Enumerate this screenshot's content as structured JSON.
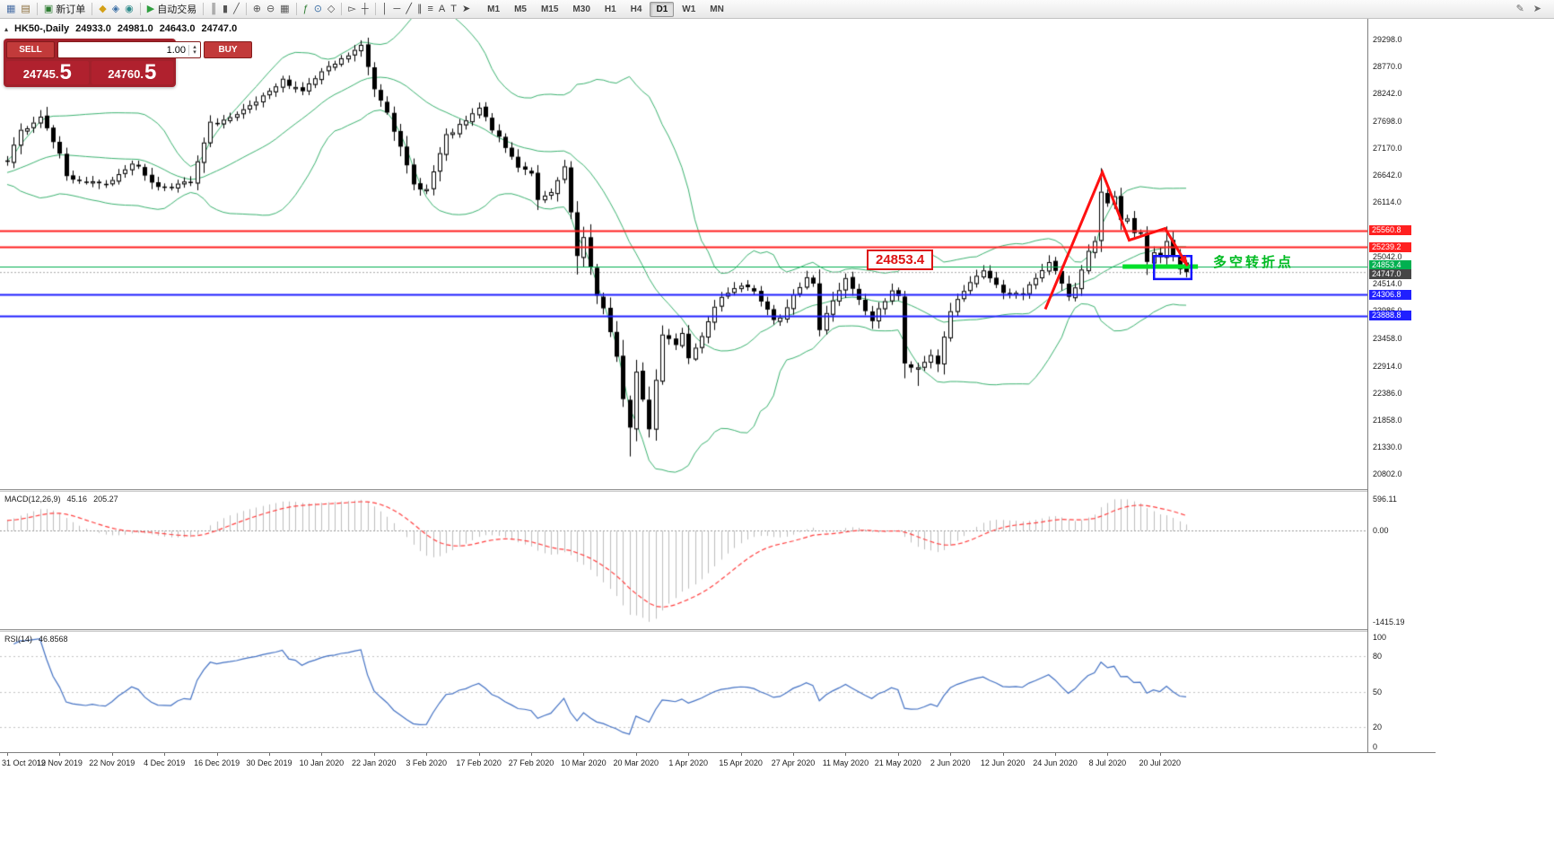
{
  "toolbar": {
    "groups": [
      {
        "items": [
          {
            "name": "new-chart-icon",
            "glyph": "▦",
            "color": "#4a6fa5"
          },
          {
            "name": "profiles-icon",
            "glyph": "▤",
            "color": "#8a6d3b"
          }
        ]
      },
      {
        "items": [
          {
            "name": "new-order-button",
            "glyph": "▣",
            "color": "#2e7d32",
            "label": "新订单"
          }
        ]
      },
      {
        "items": [
          {
            "name": "market-watch-icon",
            "glyph": "◆",
            "color": "#d4a017"
          },
          {
            "name": "data-window-icon",
            "glyph": "◈",
            "color": "#3a6ea5"
          },
          {
            "name": "navigator-icon",
            "glyph": "◉",
            "color": "#2e8b8b"
          }
        ]
      },
      {
        "items": [
          {
            "name": "autotrading-button",
            "glyph": "▶",
            "color": "#2e9e3e",
            "label": "自动交易"
          }
        ]
      },
      {
        "items": [
          {
            "name": "bar-chart-icon",
            "glyph": "║",
            "color": "#555555"
          },
          {
            "name": "candlestick-chart-icon",
            "glyph": "▮",
            "color": "#555555"
          },
          {
            "name": "line-chart-icon",
            "glyph": "╱",
            "color": "#555555"
          }
        ]
      },
      {
        "items": [
          {
            "name": "zoom-in-icon",
            "glyph": "⊕",
            "color": "#555555"
          },
          {
            "name": "zoom-out-icon",
            "glyph": "⊖",
            "color": "#555555"
          },
          {
            "name": "tile-windows-icon",
            "glyph": "▦",
            "color": "#555555"
          }
        ]
      },
      {
        "items": [
          {
            "name": "indicators-icon",
            "glyph": "ƒ",
            "color": "#2e7d32"
          },
          {
            "name": "cycles-icon",
            "glyph": "⊙",
            "color": "#3a6ea5"
          },
          {
            "name": "objects-icon",
            "glyph": "◇",
            "color": "#555555"
          }
        ]
      },
      {
        "items": [
          {
            "name": "cursor-icon",
            "glyph": "▻",
            "color": "#444444"
          },
          {
            "name": "crosshair-icon",
            "glyph": "┼",
            "color": "#444444"
          }
        ]
      },
      {
        "items": [
          {
            "name": "vertical-line-icon",
            "glyph": "│",
            "color": "#444444"
          },
          {
            "name": "horizontal-line-icon",
            "glyph": "─",
            "color": "#444444"
          },
          {
            "name": "trendline-icon",
            "glyph": "╱",
            "color": "#444444"
          },
          {
            "name": "channel-icon",
            "glyph": "∥",
            "color": "#444444"
          },
          {
            "name": "fibonacci-icon",
            "glyph": "≡",
            "color": "#444444"
          },
          {
            "name": "text-icon",
            "glyph": "A",
            "color": "#444444"
          },
          {
            "name": "label-icon",
            "glyph": "T",
            "color": "#444444"
          },
          {
            "name": "arrows-icon",
            "glyph": "➤",
            "color": "#444444"
          }
        ]
      }
    ],
    "timeframes": [
      "M1",
      "M5",
      "M15",
      "M30",
      "H1",
      "H4",
      "D1",
      "W1",
      "MN"
    ],
    "active_timeframe": "D1",
    "right_icons": [
      {
        "name": "pencil-icon",
        "glyph": "✎"
      },
      {
        "name": "pointer-icon",
        "glyph": "➤"
      }
    ]
  },
  "quote_bar": {
    "collapse_glyph": "▴",
    "symbol_period": "HK50-,Daily",
    "open": "24933.0",
    "high": "24981.0",
    "low": "24643.0",
    "close": "24747.0"
  },
  "one_click": {
    "sell_label": "SELL",
    "buy_label": "BUY",
    "volume": "1.00",
    "vol_up_glyph": "▴",
    "vol_down_glyph": "▾",
    "sell_price_main": "24745.",
    "sell_price_big": "5",
    "buy_price_main": "24760.",
    "buy_price_big": "5"
  },
  "annotations": {
    "level_label": "24853.4",
    "turning_point_label": "多空转折点"
  },
  "chart_data": {
    "type": "candlestick",
    "title": "HK50-,Daily",
    "n_candles": 181,
    "x_label_every": 8,
    "x_labels": [
      "31 Oct 2019",
      "12 Nov 2019",
      "22 Nov 2019",
      "4 Dec 2019",
      "16 Dec 2019",
      "30 Dec 2019",
      "10 Jan 2020",
      "22 Jan 2020",
      "3 Feb 2020",
      "17 Feb 2020",
      "27 Feb 2020",
      "10 Mar 2020",
      "20 Mar 2020",
      "1 Apr 2020",
      "15 Apr 2020",
      "27 Apr 2020",
      "11 May 2020",
      "21 May 2020",
      "2 Jun 2020",
      "12 Jun 2020",
      "24 Jun 2020",
      "8 Jul 2020",
      "20 Jul 2020"
    ],
    "ylim": [
      20500,
      29700
    ],
    "price_axis_labels": [
      "29298.0",
      "28770.0",
      "28242.0",
      "27698.0",
      "27170.0",
      "26642.0",
      "26114.0",
      "25570.0",
      "25042.0",
      "24514.0",
      "23986.0",
      "23458.0",
      "22914.0",
      "22386.0",
      "21858.0",
      "21330.0",
      "20802.0"
    ],
    "close_waypoints": [
      [
        -34,
        25950
      ],
      [
        -28,
        26150
      ],
      [
        -22,
        26350
      ],
      [
        -16,
        26600
      ],
      [
        -10,
        26750
      ],
      [
        -5,
        26650
      ],
      [
        -2,
        26850
      ],
      [
        0,
        26900
      ],
      [
        2,
        27500
      ],
      [
        5,
        27800
      ],
      [
        8,
        27100
      ],
      [
        9,
        26600
      ],
      [
        12,
        26500
      ],
      [
        15,
        26450
      ],
      [
        19,
        26900
      ],
      [
        23,
        26400
      ],
      [
        28,
        26500
      ],
      [
        31,
        27650
      ],
      [
        35,
        27800
      ],
      [
        40,
        28250
      ],
      [
        42,
        28500
      ],
      [
        45,
        28300
      ],
      [
        48,
        28650
      ],
      [
        51,
        28900
      ],
      [
        54,
        29170
      ],
      [
        56,
        28340
      ],
      [
        58,
        27910
      ],
      [
        60,
        27160
      ],
      [
        62,
        26450
      ],
      [
        64,
        26360
      ],
      [
        67,
        27400
      ],
      [
        70,
        27700
      ],
      [
        72,
        27950
      ],
      [
        75,
        27350
      ],
      [
        78,
        26820
      ],
      [
        80,
        26700
      ],
      [
        81,
        26130
      ],
      [
        83,
        26290
      ],
      [
        85,
        26770
      ],
      [
        87,
        25040
      ],
      [
        88,
        25390
      ],
      [
        90,
        24310
      ],
      [
        91,
        24030
      ],
      [
        93,
        23060
      ],
      [
        94,
        22290
      ],
      [
        95,
        21700
      ],
      [
        96,
        22800
      ],
      [
        98,
        21700
      ],
      [
        99,
        22660
      ],
      [
        100,
        23530
      ],
      [
        102,
        23350
      ],
      [
        103,
        23600
      ],
      [
        104,
        23090
      ],
      [
        107,
        23750
      ],
      [
        109,
        24300
      ],
      [
        111,
        24440
      ],
      [
        112,
        24480
      ],
      [
        114,
        24380
      ],
      [
        117,
        23790
      ],
      [
        118,
        23830
      ],
      [
        120,
        24280
      ],
      [
        122,
        24640
      ],
      [
        123,
        24540
      ],
      [
        124,
        23610
      ],
      [
        126,
        24230
      ],
      [
        128,
        24600
      ],
      [
        130,
        24180
      ],
      [
        132,
        23800
      ],
      [
        135,
        24400
      ],
      [
        136,
        24280
      ],
      [
        137,
        22930
      ],
      [
        139,
        22840
      ],
      [
        141,
        23130
      ],
      [
        142,
        22960
      ],
      [
        144,
        24000
      ],
      [
        146,
        24370
      ],
      [
        149,
        24780
      ],
      [
        151,
        24480
      ],
      [
        152,
        24300
      ],
      [
        155,
        24340
      ],
      [
        157,
        24640
      ],
      [
        159,
        24910
      ],
      [
        160,
        24780
      ],
      [
        162,
        24300
      ],
      [
        163,
        24430
      ],
      [
        165,
        25120
      ],
      [
        166,
        25370
      ],
      [
        167,
        26340
      ],
      [
        168,
        26130
      ],
      [
        169,
        26210
      ],
      [
        170,
        25730
      ],
      [
        171,
        25770
      ],
      [
        172,
        25480
      ],
      [
        173,
        25480
      ],
      [
        174,
        24970
      ],
      [
        175,
        25090
      ],
      [
        176,
        25060
      ],
      [
        177,
        25350
      ],
      [
        178,
        25060
      ],
      [
        179,
        24780
      ],
      [
        180,
        24747
      ]
    ],
    "last_candle_ohlc": [
      24933.0,
      24981.0,
      24643.0,
      24747.0
    ],
    "high_overrides": {
      "54": 29280,
      "167": 26780,
      "177": 25640
    },
    "low_overrides": {
      "95": 21140,
      "139": 22520
    },
    "noise_seed": 7,
    "candle_up_color": "#ffffff",
    "candle_down_color": "#000000",
    "horizontal_lines": [
      {
        "price": 25560.8,
        "color": "#ff2020",
        "width": 2,
        "label": "25560.8",
        "tag_offset": 0
      },
      {
        "price": 25239.2,
        "color": "#ff2020",
        "width": 2,
        "label": "25239.2",
        "tag_offset": 0
      },
      {
        "price": 24853.4,
        "color": "#00b050",
        "width": 1,
        "label": "24853.4",
        "tag_offset": -2
      },
      {
        "price": 24306.8,
        "color": "#2020ff",
        "width": 2,
        "label": "24306.8",
        "tag_offset": 0
      },
      {
        "price": 23888.8,
        "color": "#2020ff",
        "width": 2,
        "label": "23888.8",
        "tag_offset": 0
      }
    ],
    "current_price": {
      "value": 24747.0,
      "label": "24747.0",
      "tag_color": "#464646",
      "tag_offset": 2
    },
    "indicators": {
      "bollinger": {
        "period": 20,
        "deviation": 2,
        "color": "#3cb371"
      },
      "macd": {
        "name": "MACD(12,26,9)",
        "value_main": "45.16",
        "value_signal": "205.27",
        "axis_labels": [
          "596.11",
          "0.00",
          "-1415.19"
        ],
        "histogram_color": "#bebebe",
        "signal_color": "#ff4040"
      },
      "rsi": {
        "name": "RSI(14)",
        "value": "46.8568",
        "axis_labels": [
          "100",
          "80",
          "50",
          "20",
          "0"
        ],
        "levels": [
          80,
          50,
          20
        ],
        "color": "#4472c4"
      }
    },
    "shapes": {
      "zigzag": {
        "color": "#ff1111",
        "points_idx_price": [
          [
            158.5,
            24020
          ],
          [
            167.2,
            26700
          ],
          [
            171.3,
            25370
          ],
          [
            176.8,
            25600
          ],
          [
            180.2,
            24870
          ]
        ]
      },
      "blue_box": {
        "color": "#1515ff",
        "idx_range": [
          175.1,
          180.8
        ],
        "price_range": [
          24610,
          25060
        ]
      },
      "green_segment": {
        "color": "#00e02a",
        "price": 24853.4,
        "idx_range": [
          170.3,
          181.8
        ],
        "width": 5
      }
    }
  }
}
